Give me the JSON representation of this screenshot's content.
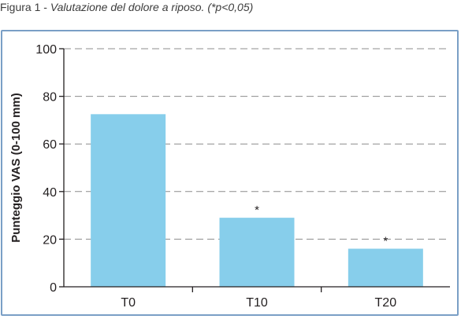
{
  "caption": {
    "figure": "Figura 1",
    "separator": " - ",
    "subtitle": "Valutazione del dolore a riposo. (*p<0,05)"
  },
  "colors": {
    "bar": "#87ceeb",
    "frame": "#7a9fc6",
    "grid": "#8c8c8c",
    "axis": "#231f20"
  },
  "chart_data": {
    "type": "bar",
    "title": "",
    "xlabel": "",
    "ylabel": "Punteggio VAS (0-100 mm)",
    "categories": [
      "T0",
      "T10",
      "T20"
    ],
    "values": [
      72.5,
      29,
      16
    ],
    "annotations": [
      "",
      "*",
      "*"
    ],
    "ylim": [
      0,
      100
    ],
    "yticks": [
      0,
      20,
      40,
      60,
      80,
      100
    ],
    "grid": "horizontal dashed",
    "legend": "none"
  }
}
